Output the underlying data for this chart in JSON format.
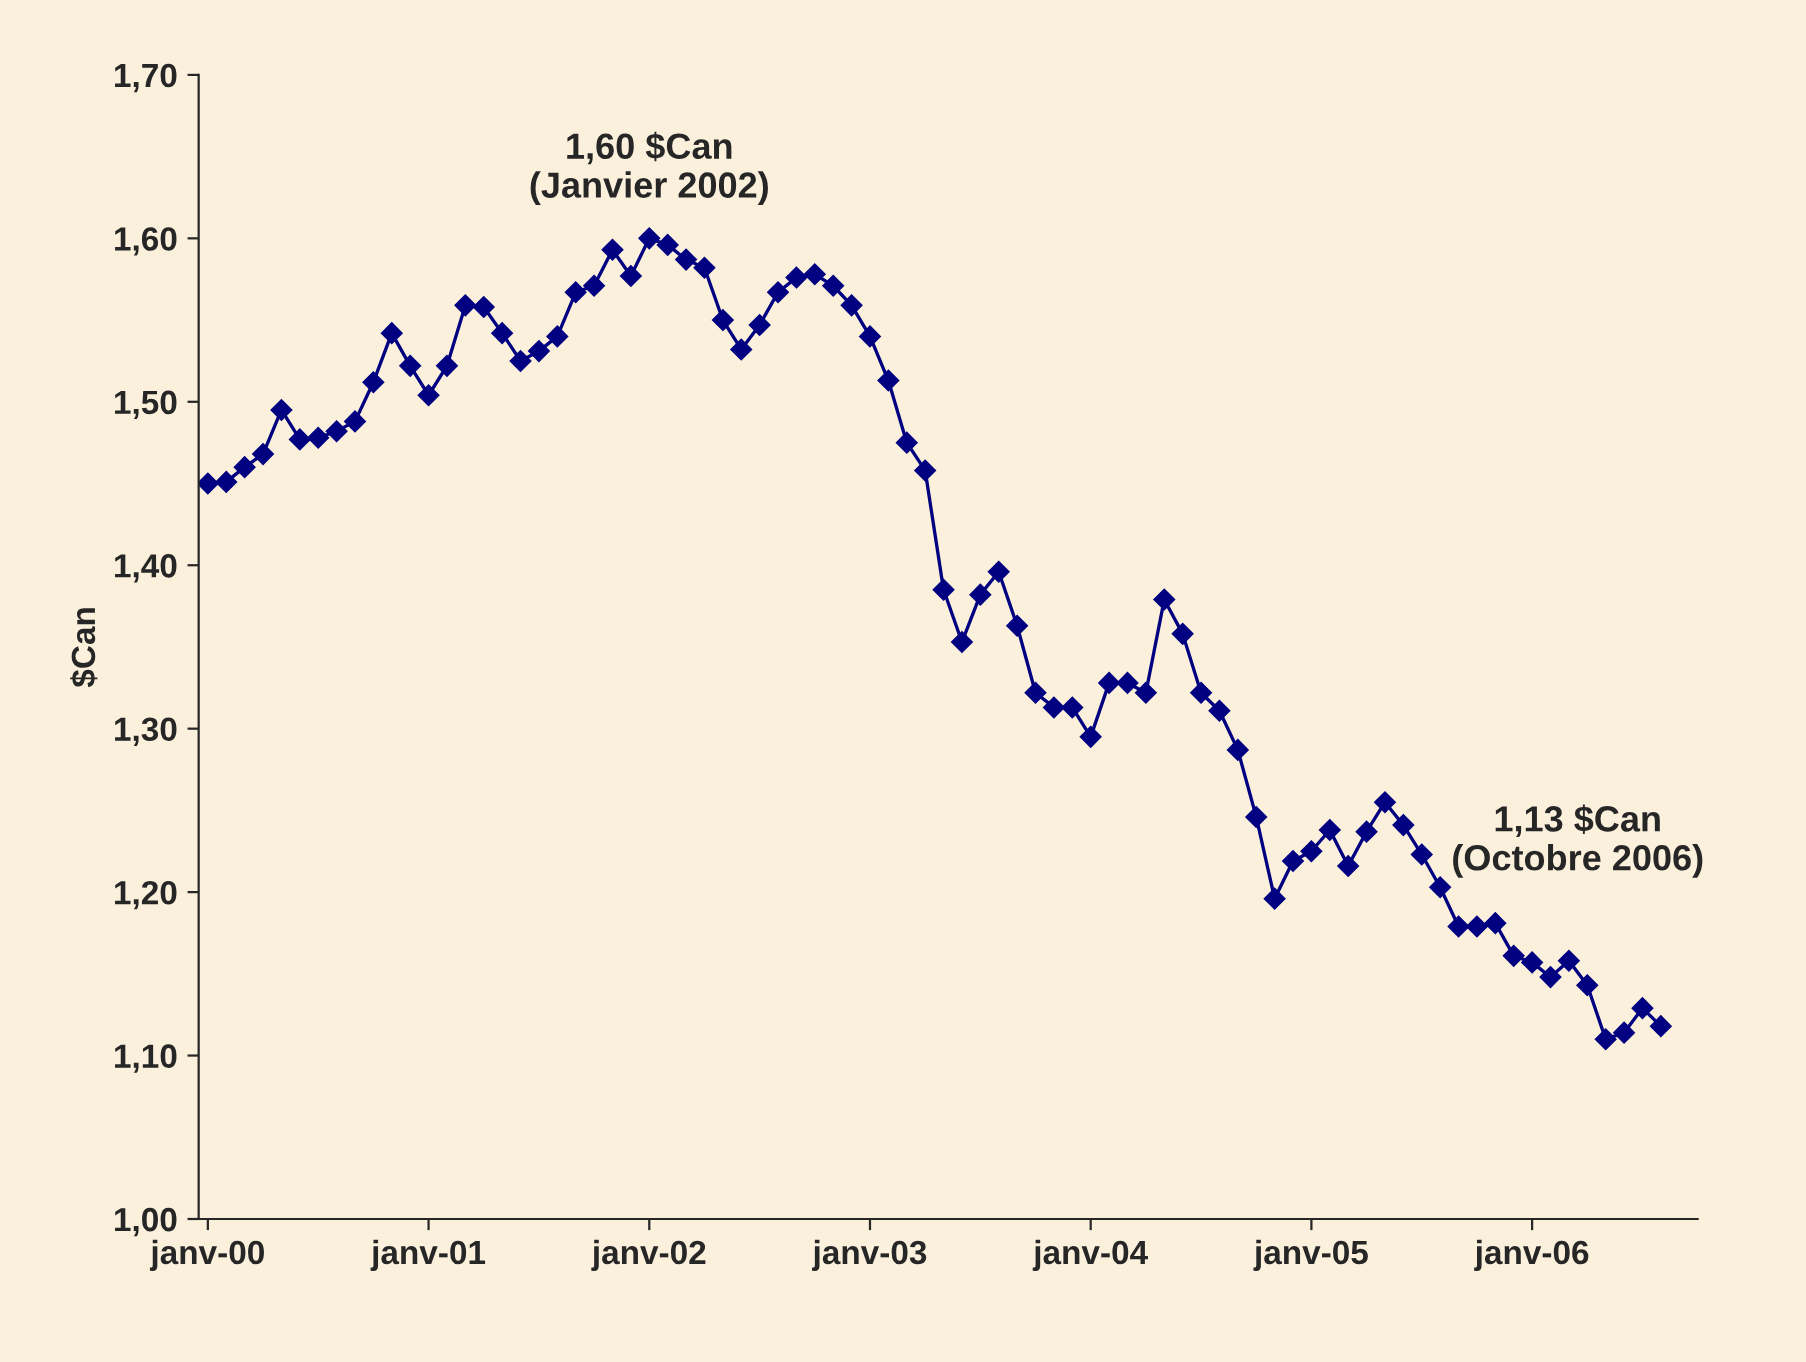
{
  "chart_data": {
    "type": "line",
    "ylabel": "$Can",
    "categories": [
      "janv-00",
      null,
      null,
      null,
      null,
      null,
      null,
      null,
      null,
      null,
      null,
      null,
      "janv-01",
      null,
      null,
      null,
      null,
      null,
      null,
      null,
      null,
      null,
      null,
      null,
      "janv-02",
      null,
      null,
      null,
      null,
      null,
      null,
      null,
      null,
      null,
      null,
      null,
      "janv-03",
      null,
      null,
      null,
      null,
      null,
      null,
      null,
      null,
      null,
      null,
      null,
      "janv-04",
      null,
      null,
      null,
      null,
      null,
      null,
      null,
      null,
      null,
      null,
      null,
      "janv-05",
      null,
      null,
      null,
      null,
      null,
      null,
      null,
      null,
      null,
      null,
      null,
      "janv-06",
      null,
      null,
      null,
      null,
      null,
      null,
      null
    ],
    "series": [
      {
        "color": "#000080",
        "values": [
          1.45,
          1.451,
          1.46,
          1.468,
          1.495,
          1.477,
          1.478,
          1.482,
          1.488,
          1.512,
          1.542,
          1.522,
          1.504,
          1.522,
          1.559,
          1.558,
          1.542,
          1.525,
          1.531,
          1.54,
          1.567,
          1.571,
          1.593,
          1.577,
          1.6,
          1.596,
          1.587,
          1.582,
          1.55,
          1.532,
          1.547,
          1.567,
          1.576,
          1.578,
          1.571,
          1.559,
          1.54,
          1.513,
          1.475,
          1.458,
          1.385,
          1.353,
          1.382,
          1.396,
          1.363,
          1.322,
          1.313,
          1.313,
          1.295,
          1.328,
          1.328,
          1.322,
          1.379,
          1.358,
          1.322,
          1.311,
          1.287,
          1.246,
          1.196,
          1.219,
          1.225,
          1.238,
          1.216,
          1.237,
          1.255,
          1.241,
          1.223,
          1.203,
          1.179,
          1.179,
          1.181,
          1.161,
          1.157,
          1.148,
          1.158,
          1.143,
          1.11,
          1.114,
          1.129,
          1.118
        ]
      }
    ],
    "ylim": [
      1.0,
      1.7
    ],
    "yticks": [
      {
        "value": 1.0,
        "label": "1,00"
      },
      {
        "value": 1.1,
        "label": "1,10"
      },
      {
        "value": 1.2,
        "label": "1,20"
      },
      {
        "value": 1.3,
        "label": "1,30"
      },
      {
        "value": 1.4,
        "label": "1,40"
      },
      {
        "value": 1.5,
        "label": "1,50"
      },
      {
        "value": 1.6,
        "label": "1,60"
      },
      {
        "value": 1.7,
        "label": "1,70"
      }
    ],
    "marker": "diamond",
    "line_style": "solid",
    "grid": false,
    "annotations": [
      {
        "text": "1,60 $Can\n(Janvier 2002)",
        "x": "janv-02",
        "y": 1.6
      },
      "1,13 $Can\n(Octobre 2006)"
    ]
  }
}
